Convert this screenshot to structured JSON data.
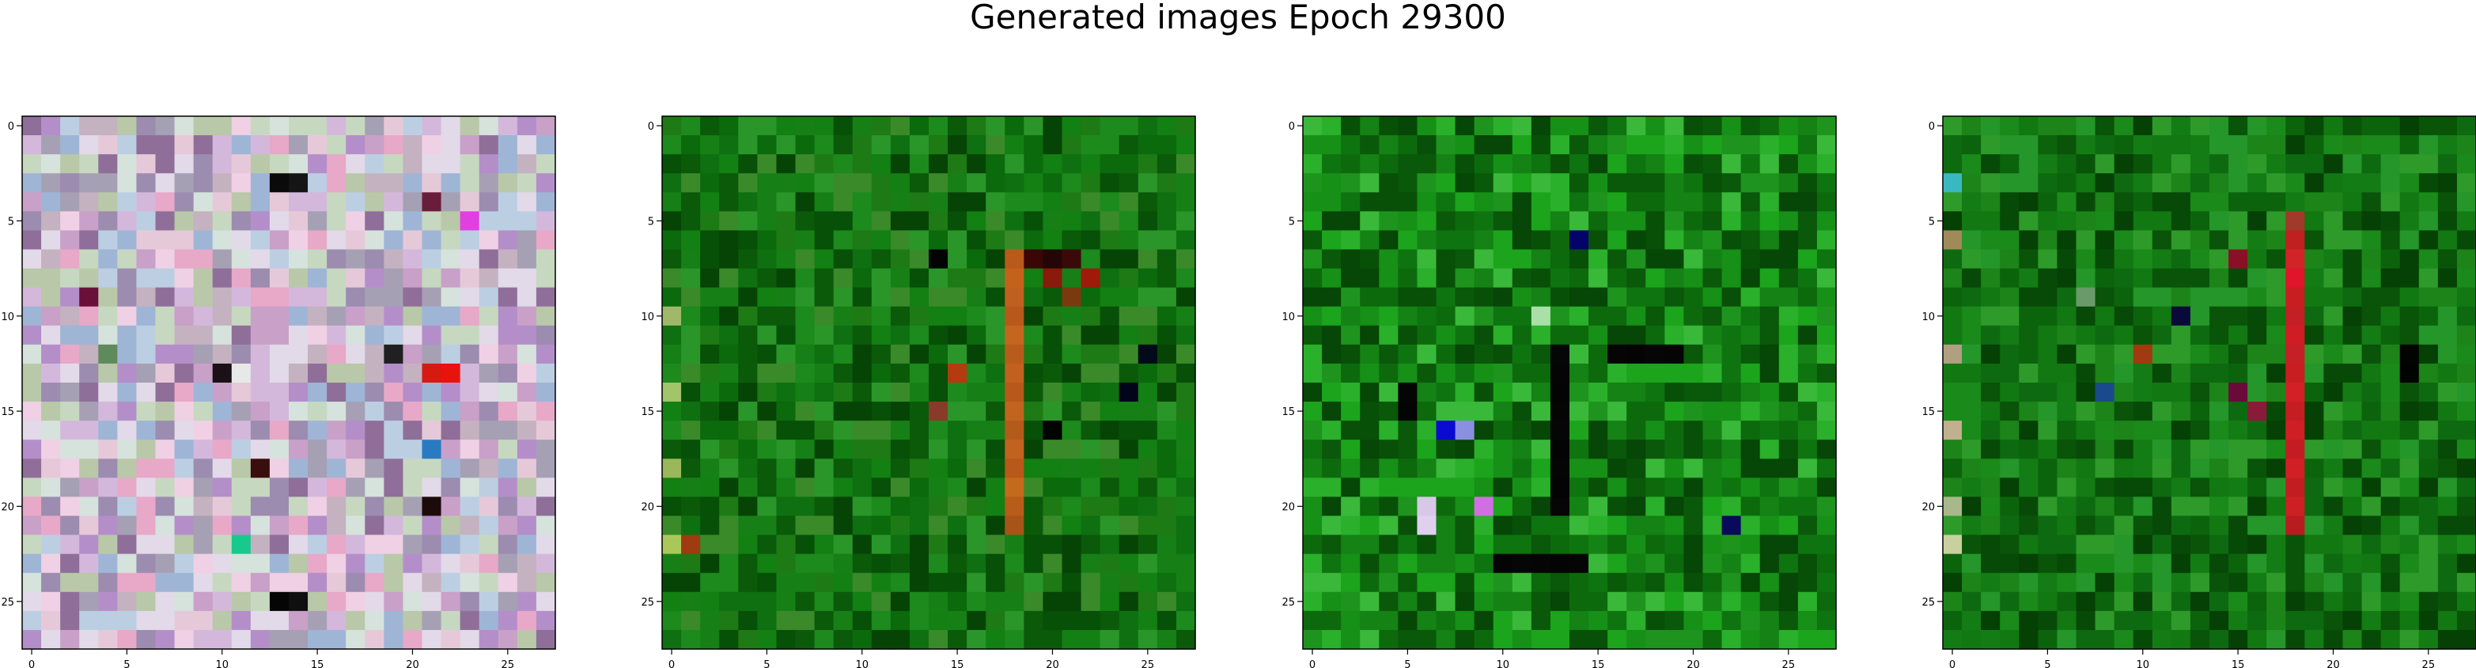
{
  "figure": {
    "title": "Generated images Epoch 29300"
  },
  "chart_data": [
    {
      "type": "heatmap",
      "panel": "image-1",
      "image_shape": [
        28,
        28,
        3
      ],
      "xlim": [
        -0.5,
        27.5
      ],
      "ylim": [
        27.5,
        -0.5
      ],
      "xticks": [
        0,
        5,
        10,
        15,
        20,
        25
      ],
      "yticks": [
        0,
        5,
        10,
        15,
        20,
        25
      ],
      "palette": [
        "#b48ec9",
        "#d4b8dc",
        "#e6c9d9",
        "#c7d8c0",
        "#9fb5d6",
        "#e2d9e9",
        "#c9a0c8",
        "#b9c8a8",
        "#a6a0b4",
        "#e8a8c8",
        "#d6e2dc",
        "#9c8cb0",
        "#8f6f99",
        "#f0d0e4",
        "#c4b2c0",
        "#bccfe2"
      ],
      "accents": [
        {
          "row": 3,
          "col": 13,
          "color": "#0a0a0a"
        },
        {
          "row": 3,
          "col": 14,
          "color": "#151515"
        },
        {
          "row": 13,
          "col": 21,
          "color": "#d61a12"
        },
        {
          "row": 13,
          "col": 22,
          "color": "#e8130c"
        },
        {
          "row": 12,
          "col": 19,
          "color": "#202020"
        },
        {
          "row": 13,
          "col": 10,
          "color": "#1a1016"
        },
        {
          "row": 13,
          "col": 11,
          "color": "#e8e8e8"
        },
        {
          "row": 22,
          "col": 11,
          "color": "#17c98c"
        },
        {
          "row": 25,
          "col": 13,
          "color": "#050505"
        },
        {
          "row": 25,
          "col": 14,
          "color": "#0f0f0f"
        },
        {
          "row": 18,
          "col": 12,
          "color": "#3a0e0e"
        },
        {
          "row": 20,
          "col": 21,
          "color": "#1d0b0b"
        },
        {
          "row": 17,
          "col": 21,
          "color": "#2a7ac2"
        },
        {
          "row": 4,
          "col": 21,
          "color": "#6a1d3a"
        },
        {
          "row": 5,
          "col": 23,
          "color": "#e040e0"
        },
        {
          "row": 9,
          "col": 3,
          "color": "#6a0f3a"
        },
        {
          "row": 12,
          "col": 4,
          "color": "#5e8a5e"
        }
      ]
    },
    {
      "type": "heatmap",
      "panel": "image-2",
      "image_shape": [
        28,
        28,
        3
      ],
      "xlim": [
        -0.5,
        27.5
      ],
      "ylim": [
        27.5,
        -0.5
      ],
      "xticks": [
        0,
        5,
        10,
        15,
        20,
        25
      ],
      "yticks": [
        0,
        5,
        10,
        15,
        20,
        25
      ],
      "palette": [
        "#0b6a0b",
        "#128012",
        "#0a5a0a",
        "#1c8a1c",
        "#075007",
        "#168016",
        "#2a962a",
        "#064406",
        "#0e7010",
        "#1e7a14",
        "#3a8a2a"
      ],
      "accents": [
        {
          "row": 7,
          "col": 18,
          "color": "#b85a1a"
        },
        {
          "row": 8,
          "col": 18,
          "color": "#c4621c"
        },
        {
          "row": 9,
          "col": 18,
          "color": "#c06020"
        },
        {
          "row": 10,
          "col": 18,
          "color": "#b8581a"
        },
        {
          "row": 11,
          "col": 18,
          "color": "#c4661e"
        },
        {
          "row": 12,
          "col": 18,
          "color": "#b85c1c"
        },
        {
          "row": 13,
          "col": 18,
          "color": "#c26020"
        },
        {
          "row": 14,
          "col": 18,
          "color": "#b8581a"
        },
        {
          "row": 15,
          "col": 18,
          "color": "#c06420"
        },
        {
          "row": 16,
          "col": 18,
          "color": "#b45a1a"
        },
        {
          "row": 17,
          "col": 18,
          "color": "#c26220"
        },
        {
          "row": 18,
          "col": 18,
          "color": "#b8581a"
        },
        {
          "row": 19,
          "col": 18,
          "color": "#c46a1c"
        },
        {
          "row": 20,
          "col": 18,
          "color": "#b85c1a"
        },
        {
          "row": 21,
          "col": 18,
          "color": "#a85418"
        },
        {
          "row": 7,
          "col": 19,
          "color": "#3a0606"
        },
        {
          "row": 7,
          "col": 20,
          "color": "#240606"
        },
        {
          "row": 7,
          "col": 21,
          "color": "#3a0a0a"
        },
        {
          "row": 8,
          "col": 22,
          "color": "#a01a0a"
        },
        {
          "row": 8,
          "col": 20,
          "color": "#8a1a0a"
        },
        {
          "row": 9,
          "col": 21,
          "color": "#7a3a10"
        },
        {
          "row": 13,
          "col": 15,
          "color": "#b43a10"
        },
        {
          "row": 15,
          "col": 14,
          "color": "#8a3a2a"
        },
        {
          "row": 22,
          "col": 1,
          "color": "#a03a10"
        },
        {
          "row": 10,
          "col": 0,
          "color": "#9fb86a"
        },
        {
          "row": 14,
          "col": 0,
          "color": "#a2c46a"
        },
        {
          "row": 18,
          "col": 0,
          "color": "#9ab85a"
        },
        {
          "row": 22,
          "col": 0,
          "color": "#aac85a"
        },
        {
          "row": 7,
          "col": 14,
          "color": "#020402"
        },
        {
          "row": 16,
          "col": 20,
          "color": "#010501"
        },
        {
          "row": 12,
          "col": 25,
          "color": "#000a18"
        },
        {
          "row": 14,
          "col": 24,
          "color": "#02041a"
        }
      ]
    },
    {
      "type": "heatmap",
      "panel": "image-3",
      "image_shape": [
        28,
        28,
        3
      ],
      "xlim": [
        -0.5,
        27.5
      ],
      "ylim": [
        27.5,
        -0.5
      ],
      "xticks": [
        0,
        5,
        10,
        15,
        20,
        25
      ],
      "yticks": [
        0,
        5,
        10,
        15,
        20,
        25
      ],
      "palette": [
        "#0c6a0c",
        "#148214",
        "#0a580a",
        "#1e941e",
        "#085008",
        "#169016",
        "#2ab02a",
        "#064606",
        "#0e7410",
        "#1ca41c",
        "#3ab83a"
      ],
      "accents": [
        {
          "row": 16,
          "col": 7,
          "color": "#0a0ad2"
        },
        {
          "row": 16,
          "col": 8,
          "color": "#8a90e0"
        },
        {
          "row": 20,
          "col": 6,
          "color": "#d8c8e8"
        },
        {
          "row": 21,
          "col": 6,
          "color": "#e0d0f0"
        },
        {
          "row": 20,
          "col": 9,
          "color": "#d070e0"
        },
        {
          "row": 10,
          "col": 12,
          "color": "#a8e0a8"
        },
        {
          "row": 12,
          "col": 13,
          "color": "#060606"
        },
        {
          "row": 13,
          "col": 13,
          "color": "#050505"
        },
        {
          "row": 14,
          "col": 13,
          "color": "#040404"
        },
        {
          "row": 15,
          "col": 13,
          "color": "#050505"
        },
        {
          "row": 16,
          "col": 13,
          "color": "#060606"
        },
        {
          "row": 17,
          "col": 13,
          "color": "#040404"
        },
        {
          "row": 18,
          "col": 13,
          "color": "#050505"
        },
        {
          "row": 19,
          "col": 13,
          "color": "#040404"
        },
        {
          "row": 20,
          "col": 13,
          "color": "#060606"
        },
        {
          "row": 23,
          "col": 10,
          "color": "#040404"
        },
        {
          "row": 23,
          "col": 11,
          "color": "#060606"
        },
        {
          "row": 23,
          "col": 12,
          "color": "#050505"
        },
        {
          "row": 23,
          "col": 13,
          "color": "#040404"
        },
        {
          "row": 23,
          "col": 14,
          "color": "#050505"
        },
        {
          "row": 12,
          "col": 16,
          "color": "#050505"
        },
        {
          "row": 12,
          "col": 17,
          "color": "#040404"
        },
        {
          "row": 12,
          "col": 18,
          "color": "#060606"
        },
        {
          "row": 12,
          "col": 19,
          "color": "#050505"
        },
        {
          "row": 14,
          "col": 5,
          "color": "#050505"
        },
        {
          "row": 15,
          "col": 5,
          "color": "#040404"
        },
        {
          "row": 6,
          "col": 14,
          "color": "#02046a"
        },
        {
          "row": 21,
          "col": 22,
          "color": "#0a0a5a"
        }
      ]
    },
    {
      "type": "heatmap",
      "panel": "image-4",
      "image_shape": [
        28,
        28,
        3
      ],
      "xlim": [
        -0.5,
        27.5
      ],
      "ylim": [
        27.5,
        -0.5
      ],
      "xticks": [
        0,
        5,
        10,
        15,
        20,
        25
      ],
      "yticks": [
        0,
        5,
        10,
        15,
        20,
        25
      ],
      "palette": [
        "#0b640b",
        "#127812",
        "#095409",
        "#1a8a1a",
        "#074a07",
        "#147c14",
        "#24962a",
        "#054005",
        "#0e6a10",
        "#1c8418",
        "#2e9a2a"
      ],
      "accents": [
        {
          "row": 6,
          "col": 18,
          "color": "#c02020"
        },
        {
          "row": 7,
          "col": 18,
          "color": "#d02428"
        },
        {
          "row": 8,
          "col": 18,
          "color": "#e0142a"
        },
        {
          "row": 9,
          "col": 18,
          "color": "#c81e22"
        },
        {
          "row": 10,
          "col": 18,
          "color": "#c22024"
        },
        {
          "row": 11,
          "col": 18,
          "color": "#d01c24"
        },
        {
          "row": 12,
          "col": 18,
          "color": "#c42026"
        },
        {
          "row": 13,
          "col": 18,
          "color": "#c81e22"
        },
        {
          "row": 14,
          "col": 18,
          "color": "#d22026"
        },
        {
          "row": 15,
          "col": 18,
          "color": "#c41e22"
        },
        {
          "row": 16,
          "col": 18,
          "color": "#ce2024"
        },
        {
          "row": 17,
          "col": 18,
          "color": "#c41c22"
        },
        {
          "row": 18,
          "col": 18,
          "color": "#d02026"
        },
        {
          "row": 19,
          "col": 18,
          "color": "#c21e22"
        },
        {
          "row": 20,
          "col": 18,
          "color": "#cc2024"
        },
        {
          "row": 21,
          "col": 18,
          "color": "#b81c20"
        },
        {
          "row": 5,
          "col": 18,
          "color": "#a03a2a"
        },
        {
          "row": 7,
          "col": 15,
          "color": "#8a1028"
        },
        {
          "row": 14,
          "col": 15,
          "color": "#6a0a3a"
        },
        {
          "row": 15,
          "col": 16,
          "color": "#8a1a3a"
        },
        {
          "row": 12,
          "col": 10,
          "color": "#a03a10"
        },
        {
          "row": 14,
          "col": 8,
          "color": "#1a4a8a"
        },
        {
          "row": 10,
          "col": 12,
          "color": "#0a0a3a"
        },
        {
          "row": 3,
          "col": 0,
          "color": "#3ab8c0"
        },
        {
          "row": 6,
          "col": 0,
          "color": "#a08a5a"
        },
        {
          "row": 12,
          "col": 0,
          "color": "#b0a080"
        },
        {
          "row": 16,
          "col": 0,
          "color": "#c0b090"
        },
        {
          "row": 20,
          "col": 0,
          "color": "#a8b88a"
        },
        {
          "row": 22,
          "col": 0,
          "color": "#c8d0a0"
        },
        {
          "row": 12,
          "col": 24,
          "color": "#020402"
        },
        {
          "row": 13,
          "col": 24,
          "color": "#010301"
        },
        {
          "row": 9,
          "col": 7,
          "color": "#6a9a6a"
        }
      ]
    }
  ]
}
